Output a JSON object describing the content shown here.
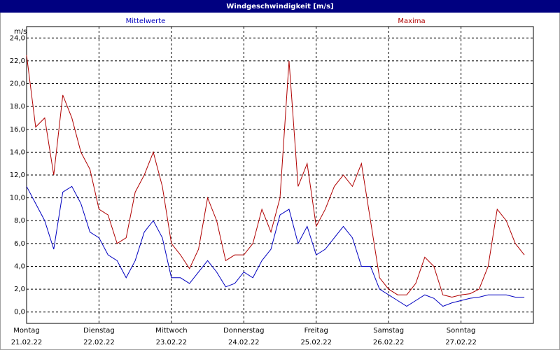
{
  "chart_data": {
    "type": "line",
    "title": "Windgeschwindigkeit [m/s]",
    "y_unit": "m/s",
    "x": [
      0,
      0.125,
      0.25,
      0.375,
      0.5,
      0.625,
      0.75,
      0.875,
      1,
      1.125,
      1.25,
      1.375,
      1.5,
      1.625,
      1.75,
      1.875,
      2,
      2.125,
      2.25,
      2.375,
      2.5,
      2.625,
      2.75,
      2.875,
      3,
      3.125,
      3.25,
      3.375,
      3.5,
      3.625,
      3.75,
      3.875,
      4,
      4.125,
      4.25,
      4.375,
      4.5,
      4.625,
      4.75,
      4.875,
      5,
      5.125,
      5.25,
      5.375,
      5.5,
      5.625,
      5.75,
      5.875,
      6,
      6.125,
      6.25,
      6.375,
      6.5,
      6.625,
      6.75,
      6.875
    ],
    "series": [
      {
        "name": "Mittelwerte",
        "color": "#0000c0",
        "values": [
          11,
          9.5,
          8,
          5.5,
          10.5,
          11,
          9.5,
          7,
          6.5,
          5,
          4.5,
          3,
          4.5,
          7,
          8,
          6.5,
          3,
          3,
          2.5,
          3.5,
          4.5,
          3.5,
          2.2,
          2.5,
          3.5,
          3,
          4.5,
          5.5,
          8.5,
          9,
          6,
          7.5,
          5,
          5.5,
          6.5,
          7.5,
          6.5,
          4,
          4,
          2,
          1.5,
          1,
          0.5,
          1,
          1.5,
          1.2,
          0.5,
          0.8,
          1,
          1.2,
          1.3,
          1.5,
          1.5,
          1.5,
          1.3,
          1.3
        ]
      },
      {
        "name": "Maxima",
        "color": "#b00000",
        "values": [
          22.5,
          16.2,
          17,
          12,
          19,
          17,
          14,
          12.5,
          9,
          8.5,
          6,
          6.5,
          10.5,
          12,
          14,
          11,
          6,
          5,
          3.8,
          5.5,
          10,
          8,
          4.5,
          5,
          5,
          6,
          9,
          7,
          10,
          22,
          11,
          13,
          7.5,
          9,
          11,
          12,
          11,
          13,
          8,
          3,
          2,
          1.5,
          1.5,
          2.5,
          4.8,
          4,
          1.5,
          1.3,
          1.5,
          1.6,
          2,
          4,
          9,
          8,
          6,
          5
        ]
      }
    ],
    "xlim": [
      0,
      7
    ],
    "xticks": [
      {
        "value": 0,
        "label": "Montag",
        "date": "21.02.22"
      },
      {
        "value": 1,
        "label": "Dienstag",
        "date": "22.02.22"
      },
      {
        "value": 2,
        "label": "Mittwoch",
        "date": "23.02.22"
      },
      {
        "value": 3,
        "label": "Donnerstag",
        "date": "24.02.22"
      },
      {
        "value": 4,
        "label": "Freitag",
        "date": "25.02.22"
      },
      {
        "value": 5,
        "label": "Samstag",
        "date": "26.02.22"
      },
      {
        "value": 6,
        "label": "Sonntag",
        "date": "27.02.22"
      }
    ],
    "ylim": [
      -1,
      25
    ],
    "yticks": [
      {
        "value": 0,
        "label": "0,0"
      },
      {
        "value": 2,
        "label": "2,0"
      },
      {
        "value": 4,
        "label": "4,0"
      },
      {
        "value": 6,
        "label": "6,0"
      },
      {
        "value": 8,
        "label": "8,0"
      },
      {
        "value": 10,
        "label": "10,0"
      },
      {
        "value": 12,
        "label": "12,0"
      },
      {
        "value": 14,
        "label": "14,0"
      },
      {
        "value": 16,
        "label": "16,0"
      },
      {
        "value": 18,
        "label": "18,0"
      },
      {
        "value": 20,
        "label": "20,0"
      },
      {
        "value": 22,
        "label": "22,0"
      },
      {
        "value": 24,
        "label": "24,0"
      }
    ],
    "grid": true
  }
}
